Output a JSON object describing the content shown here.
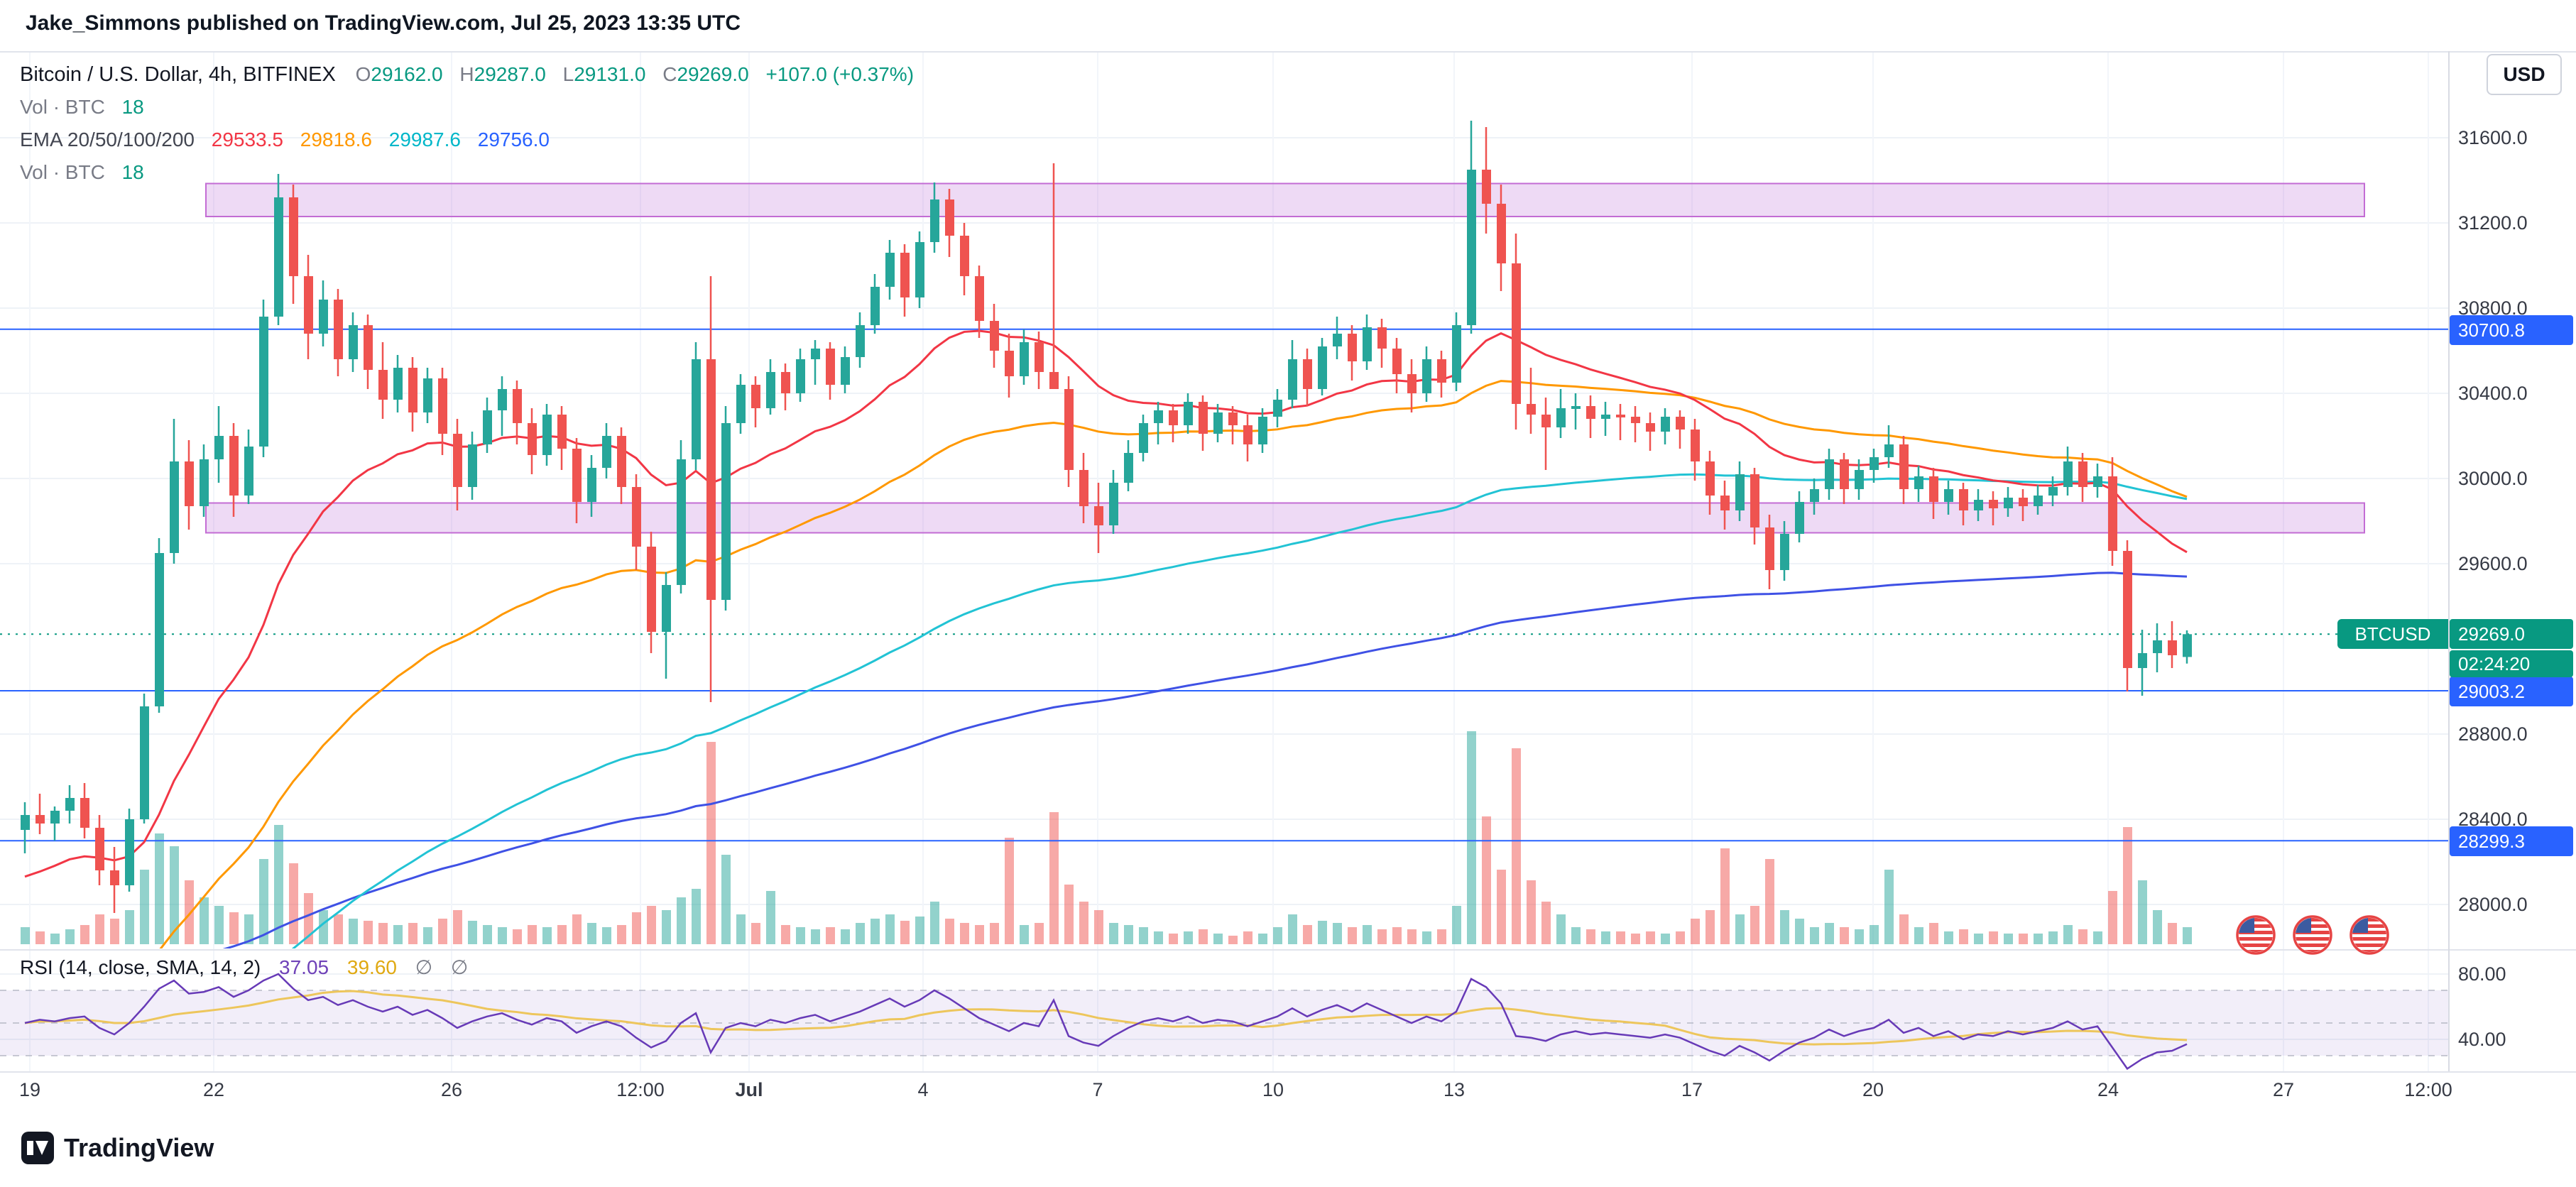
{
  "attribution": "Jake_Simmons published on TradingView.com, Jul 25, 2023 13:35 UTC",
  "header": {
    "symbol": "Bitcoin / U.S. Dollar, 4h, BITFINEX",
    "ohlc": {
      "o_label": "O",
      "o": "29162.0",
      "h_label": "H",
      "h": "29287.0",
      "l_label": "L",
      "l": "29131.0",
      "c_label": "C",
      "c": "29269.0",
      "change": "+107.0 (+0.37%)"
    },
    "vol_top": {
      "label": "Vol · BTC",
      "value": "18"
    },
    "ema": {
      "label": "EMA 20/50/100/200",
      "v20": "29533.5",
      "v50": "29818.6",
      "v100": "29987.6",
      "v200": "29756.0"
    },
    "vol_bottom": {
      "label": "Vol · BTC",
      "value": "18"
    }
  },
  "axis_button": "USD",
  "price_axis": {
    "labels": [
      "31600.0",
      "31200.0",
      "30800.0",
      "30400.0",
      "30000.0",
      "29600.0",
      "28800.0",
      "28400.0",
      "28000.0"
    ],
    "level_badges": [
      {
        "text": "30700.8",
        "price": 30700.8
      },
      {
        "text": "29003.2",
        "price": 29003.2
      },
      {
        "text": "28299.3",
        "price": 28299.3
      }
    ],
    "symbol_badge": {
      "label": "BTCUSD",
      "price_text": "29269.0",
      "countdown": "02:24:20",
      "price": 29269.0
    }
  },
  "time_axis": {
    "labels": [
      {
        "t": "19",
        "x": 42
      },
      {
        "t": "22",
        "x": 301
      },
      {
        "t": "26",
        "x": 636
      },
      {
        "t": "12:00",
        "x": 902
      },
      {
        "t": "Jul",
        "x": 1055,
        "bold": true
      },
      {
        "t": "4",
        "x": 1300
      },
      {
        "t": "7",
        "x": 1546
      },
      {
        "t": "10",
        "x": 1793
      },
      {
        "t": "13",
        "x": 2048
      },
      {
        "t": "17",
        "x": 2383
      },
      {
        "t": "20",
        "x": 2638
      },
      {
        "t": "24",
        "x": 2969
      },
      {
        "t": "27",
        "x": 3216
      },
      {
        "t": "12:00",
        "x": 3420
      }
    ]
  },
  "rsi": {
    "label": "RSI (14, close, SMA, 14, 2)",
    "value": "37.05",
    "ma_value": "39.60",
    "hidden1": "∅",
    "hidden2": "∅",
    "axis_labels": [
      {
        "t": "80.00",
        "v": 80
      },
      {
        "t": "40.00",
        "v": 40
      }
    ],
    "values": [
      50,
      52,
      51,
      53,
      54,
      47,
      43,
      50,
      60,
      71,
      76,
      68,
      69,
      72,
      66,
      70,
      76,
      80,
      71,
      64,
      66,
      61,
      64,
      60,
      57,
      60,
      55,
      58,
      53,
      47,
      51,
      54,
      56,
      52,
      49,
      53,
      51,
      44,
      48,
      51,
      48,
      41,
      35,
      39,
      50,
      56,
      32,
      47,
      50,
      48,
      52,
      50,
      53,
      55,
      51,
      54,
      57,
      61,
      65,
      60,
      64,
      70,
      65,
      59,
      53,
      49,
      45,
      50,
      48,
      64,
      42,
      38,
      36,
      42,
      47,
      51,
      53,
      51,
      54,
      50,
      52,
      51,
      48,
      51,
      54,
      59,
      54,
      58,
      61,
      57,
      62,
      58,
      54,
      50,
      54,
      51,
      57,
      77,
      72,
      62,
      42,
      41,
      39,
      43,
      45,
      43,
      44,
      43,
      42,
      41,
      43,
      41,
      37,
      33,
      30,
      36,
      32,
      27,
      33,
      38,
      41,
      46,
      42,
      45,
      47,
      52,
      44,
      47,
      42,
      45,
      40,
      43,
      42,
      45,
      43,
      45,
      47,
      51,
      46,
      48,
      35,
      22,
      28,
      32,
      33,
      37.05
    ]
  },
  "logo": {
    "text": "TradingView"
  },
  "colors": {
    "up": "#26a69a",
    "down": "#ef5350",
    "ema20": "#f23645",
    "ema50": "#ff9800",
    "ema100": "#22c3d4",
    "ema200": "#3f51e5",
    "level": "#2962ff",
    "accent": "#089981",
    "zone_fill": "rgba(187,107,217,0.25)",
    "zone_border": "#c36cd4",
    "rsi": "#673ab7",
    "rsi_ma": "#edc65c"
  },
  "chart_data": {
    "type": "candlestick",
    "symbol": "BTCUSD",
    "interval": "4h",
    "exchange": "BITFINEX",
    "title": "Bitcoin / U.S. Dollar",
    "ylim": [
      27790,
      31780
    ],
    "last_price": 29269.0,
    "levels": [
      30700.8,
      29003.2,
      28299.3
    ],
    "zones": [
      {
        "from": 31230,
        "to": 31385
      },
      {
        "from": 29745,
        "to": 29885
      }
    ],
    "ema_seeds": {
      "e20": 28100,
      "e50": 27400,
      "e100": 27000,
      "e200": 27600
    },
    "candles": [
      [
        28350,
        28480,
        28240,
        28420,
        8
      ],
      [
        28420,
        28520,
        28330,
        28380,
        6
      ],
      [
        28380,
        28460,
        28300,
        28440,
        5
      ],
      [
        28440,
        28560,
        28380,
        28500,
        7
      ],
      [
        28500,
        28570,
        28310,
        28360,
        9
      ],
      [
        28360,
        28420,
        28090,
        28160,
        14
      ],
      [
        28160,
        28270,
        27960,
        28090,
        12
      ],
      [
        28090,
        28450,
        28060,
        28400,
        16
      ],
      [
        28400,
        28990,
        28380,
        28930,
        35
      ],
      [
        28930,
        29720,
        28900,
        29650,
        52
      ],
      [
        29650,
        30280,
        29600,
        30080,
        46
      ],
      [
        30080,
        30180,
        29760,
        29870,
        30
      ],
      [
        29870,
        30160,
        29820,
        30090,
        22
      ],
      [
        30090,
        30340,
        29980,
        30200,
        18
      ],
      [
        30200,
        30260,
        29820,
        29920,
        15
      ],
      [
        29920,
        30230,
        29880,
        30150,
        14
      ],
      [
        30150,
        30840,
        30100,
        30760,
        40
      ],
      [
        30760,
        31430,
        30720,
        31320,
        56
      ],
      [
        31320,
        31380,
        30820,
        30950,
        38
      ],
      [
        30950,
        31050,
        30560,
        30680,
        24
      ],
      [
        30680,
        30930,
        30620,
        30840,
        16
      ],
      [
        30840,
        30890,
        30480,
        30560,
        14
      ],
      [
        30560,
        30780,
        30500,
        30720,
        12
      ],
      [
        30720,
        30770,
        30420,
        30510,
        11
      ],
      [
        30510,
        30640,
        30280,
        30370,
        10
      ],
      [
        30370,
        30580,
        30310,
        30520,
        9
      ],
      [
        30520,
        30570,
        30220,
        30310,
        10
      ],
      [
        30310,
        30520,
        30260,
        30470,
        8
      ],
      [
        30470,
        30520,
        30110,
        30210,
        12
      ],
      [
        30210,
        30280,
        29850,
        29960,
        16
      ],
      [
        29960,
        30220,
        29900,
        30160,
        11
      ],
      [
        30160,
        30380,
        30120,
        30320,
        9
      ],
      [
        30320,
        30480,
        30200,
        30420,
        8
      ],
      [
        30420,
        30460,
        30160,
        30260,
        7
      ],
      [
        30260,
        30330,
        30020,
        30110,
        9
      ],
      [
        30110,
        30350,
        30060,
        30300,
        8
      ],
      [
        30300,
        30340,
        30040,
        30140,
        9
      ],
      [
        30140,
        30190,
        29790,
        29890,
        14
      ],
      [
        29890,
        30110,
        29820,
        30050,
        10
      ],
      [
        30050,
        30260,
        30000,
        30200,
        8
      ],
      [
        30200,
        30240,
        29880,
        29960,
        9
      ],
      [
        29960,
        30020,
        29570,
        29680,
        15
      ],
      [
        29680,
        29750,
        29180,
        29280,
        18
      ],
      [
        29280,
        29560,
        29060,
        29500,
        16
      ],
      [
        29500,
        30180,
        29460,
        30090,
        22
      ],
      [
        30090,
        30640,
        30040,
        30560,
        26
      ],
      [
        30560,
        30950,
        28950,
        29430,
        95
      ],
      [
        29430,
        30340,
        29380,
        30260,
        42
      ],
      [
        30260,
        30490,
        30210,
        30440,
        14
      ],
      [
        30440,
        30480,
        30240,
        30330,
        10
      ],
      [
        30330,
        30560,
        30300,
        30500,
        25
      ],
      [
        30500,
        30540,
        30320,
        30400,
        9
      ],
      [
        30400,
        30610,
        30360,
        30560,
        8
      ],
      [
        30560,
        30650,
        30440,
        30610,
        7
      ],
      [
        30610,
        30640,
        30370,
        30440,
        8
      ],
      [
        30440,
        30620,
        30400,
        30570,
        7
      ],
      [
        30570,
        30780,
        30520,
        30720,
        10
      ],
      [
        30720,
        30960,
        30680,
        30900,
        12
      ],
      [
        30900,
        31120,
        30840,
        31060,
        14
      ],
      [
        31060,
        31100,
        30760,
        30850,
        11
      ],
      [
        30850,
        31160,
        30800,
        31110,
        13
      ],
      [
        31110,
        31390,
        31060,
        31310,
        20
      ],
      [
        31310,
        31360,
        31040,
        31140,
        12
      ],
      [
        31140,
        31200,
        30860,
        30950,
        10
      ],
      [
        30950,
        31000,
        30660,
        30740,
        9
      ],
      [
        30740,
        30820,
        30520,
        30600,
        10
      ],
      [
        30600,
        30680,
        30380,
        30480,
        50
      ],
      [
        30480,
        30700,
        30440,
        30640,
        9
      ],
      [
        30640,
        30690,
        30420,
        30500,
        10
      ],
      [
        30500,
        31480,
        30460,
        30420,
        62
      ],
      [
        30420,
        30480,
        29960,
        30040,
        28
      ],
      [
        30040,
        30120,
        29790,
        29870,
        20
      ],
      [
        29870,
        29980,
        29650,
        29780,
        16
      ],
      [
        29780,
        30040,
        29740,
        29980,
        10
      ],
      [
        29980,
        30180,
        29940,
        30120,
        9
      ],
      [
        30120,
        30300,
        30080,
        30260,
        8
      ],
      [
        30260,
        30360,
        30160,
        30320,
        6
      ],
      [
        30320,
        30350,
        30170,
        30250,
        5
      ],
      [
        30250,
        30400,
        30210,
        30360,
        6
      ],
      [
        30360,
        30390,
        30130,
        30210,
        7
      ],
      [
        30210,
        30350,
        30170,
        30310,
        5
      ],
      [
        30310,
        30340,
        30160,
        30250,
        4
      ],
      [
        30250,
        30300,
        30080,
        30160,
        6
      ],
      [
        30160,
        30330,
        30120,
        30290,
        5
      ],
      [
        30290,
        30420,
        30240,
        30370,
        8
      ],
      [
        30370,
        30650,
        30330,
        30560,
        14
      ],
      [
        30560,
        30610,
        30340,
        30420,
        9
      ],
      [
        30420,
        30660,
        30390,
        30620,
        11
      ],
      [
        30620,
        30760,
        30560,
        30680,
        10
      ],
      [
        30680,
        30720,
        30460,
        30550,
        8
      ],
      [
        30550,
        30770,
        30510,
        30710,
        9
      ],
      [
        30710,
        30750,
        30520,
        30610,
        7
      ],
      [
        30610,
        30660,
        30400,
        30490,
        8
      ],
      [
        30490,
        30560,
        30310,
        30400,
        7
      ],
      [
        30400,
        30620,
        30360,
        30560,
        6
      ],
      [
        30560,
        30600,
        30380,
        30450,
        7
      ],
      [
        30450,
        30780,
        30410,
        30720,
        18
      ],
      [
        30720,
        31680,
        30680,
        31450,
        100
      ],
      [
        31450,
        31650,
        31150,
        31290,
        60
      ],
      [
        31290,
        31380,
        30880,
        31010,
        35
      ],
      [
        31010,
        31150,
        30230,
        30350,
        92
      ],
      [
        30350,
        30520,
        30210,
        30300,
        30
      ],
      [
        30300,
        30380,
        30040,
        30240,
        20
      ],
      [
        30240,
        30420,
        30190,
        30330,
        14
      ],
      [
        30330,
        30400,
        30230,
        30340,
        8
      ],
      [
        30340,
        30390,
        30190,
        30280,
        7
      ],
      [
        30280,
        30360,
        30200,
        30300,
        6
      ],
      [
        30300,
        30350,
        30180,
        30290,
        6
      ],
      [
        30290,
        30340,
        30170,
        30260,
        5
      ],
      [
        30260,
        30310,
        30130,
        30220,
        6
      ],
      [
        30220,
        30330,
        30160,
        30290,
        5
      ],
      [
        30290,
        30320,
        30140,
        30230,
        6
      ],
      [
        30230,
        30280,
        29990,
        30080,
        12
      ],
      [
        30080,
        30130,
        29830,
        29920,
        16
      ],
      [
        29920,
        29990,
        29760,
        29850,
        45
      ],
      [
        29850,
        30080,
        29800,
        30020,
        14
      ],
      [
        30020,
        30050,
        29690,
        29770,
        18
      ],
      [
        29770,
        29830,
        29480,
        29570,
        40
      ],
      [
        29570,
        29800,
        29520,
        29740,
        16
      ],
      [
        29740,
        29940,
        29700,
        29890,
        12
      ],
      [
        29890,
        30000,
        29830,
        29950,
        8
      ],
      [
        29950,
        30140,
        29900,
        30090,
        10
      ],
      [
        30090,
        30120,
        29880,
        29950,
        8
      ],
      [
        29950,
        30090,
        29900,
        30040,
        7
      ],
      [
        30040,
        30140,
        29980,
        30100,
        9
      ],
      [
        30100,
        30250,
        30050,
        30160,
        35
      ],
      [
        30160,
        30200,
        29880,
        29950,
        14
      ],
      [
        29950,
        30060,
        29890,
        30010,
        8
      ],
      [
        30010,
        30050,
        29810,
        29890,
        10
      ],
      [
        29890,
        29990,
        29830,
        29950,
        6
      ],
      [
        29950,
        29980,
        29780,
        29850,
        7
      ],
      [
        29850,
        29950,
        29800,
        29900,
        5
      ],
      [
        29900,
        29940,
        29780,
        29860,
        6
      ],
      [
        29860,
        29960,
        29820,
        29910,
        5
      ],
      [
        29910,
        29950,
        29800,
        29870,
        5
      ],
      [
        29870,
        29970,
        29830,
        29920,
        5
      ],
      [
        29920,
        30010,
        29870,
        29960,
        6
      ],
      [
        29960,
        30150,
        29920,
        30080,
        9
      ],
      [
        30080,
        30120,
        29890,
        29960,
        7
      ],
      [
        29960,
        30070,
        29910,
        30010,
        6
      ],
      [
        30010,
        30100,
        29590,
        29660,
        25
      ],
      [
        29660,
        29710,
        29000,
        29110,
        55
      ],
      [
        29110,
        29290,
        28980,
        29180,
        30
      ],
      [
        29180,
        29320,
        29090,
        29240,
        16
      ],
      [
        29240,
        29330,
        29110,
        29170,
        10
      ],
      [
        29162,
        29287,
        29131,
        29269,
        8
      ]
    ]
  }
}
